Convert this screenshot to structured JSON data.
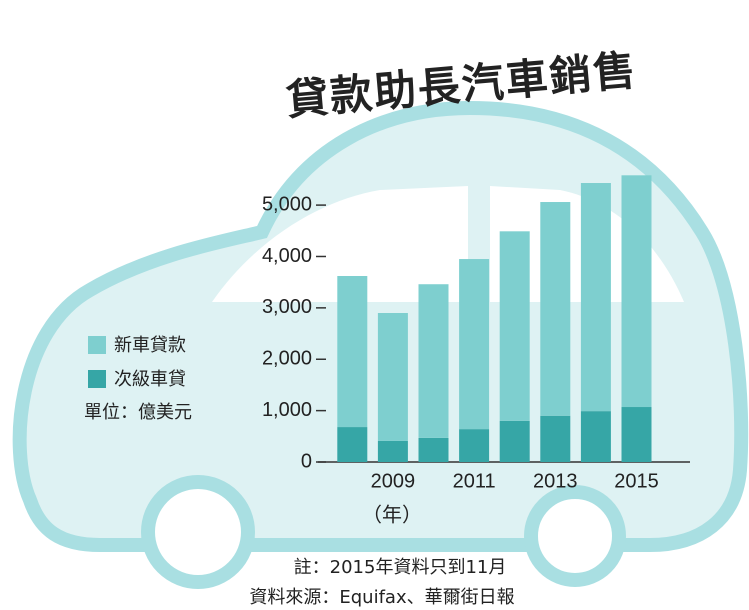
{
  "chart_data": {
    "type": "stacked_bar",
    "title": "貸款助長汽車銷售",
    "unit_label": "單位：億美元",
    "x_unit_label": "（年）",
    "note": "註：2015年資料只到11月",
    "source": "資料來源：Equifax、華爾街日報",
    "categories": [
      null,
      "2009",
      null,
      "2011",
      null,
      "2013",
      null,
      "2015"
    ],
    "series": [
      {
        "name": "新車貸款",
        "color": "#7ecfcf",
        "values": [
          2940,
          2490,
          2990,
          3310,
          3690,
          4160,
          4440,
          4510
        ]
      },
      {
        "name": "次級車貸",
        "color": "#36a6a6",
        "values": [
          680,
          410,
          470,
          640,
          800,
          900,
          990,
          1070
        ]
      }
    ],
    "ylim": [
      0,
      5800
    ],
    "yticks": [
      0,
      {
        "value": 1000,
        "label": "1,000"
      },
      {
        "value": 2000,
        "label": "2,000"
      },
      {
        "value": 3000,
        "label": "3,000"
      },
      {
        "value": 4000,
        "label": "4,000"
      },
      {
        "value": 5000,
        "label": "5,000"
      }
    ]
  }
}
